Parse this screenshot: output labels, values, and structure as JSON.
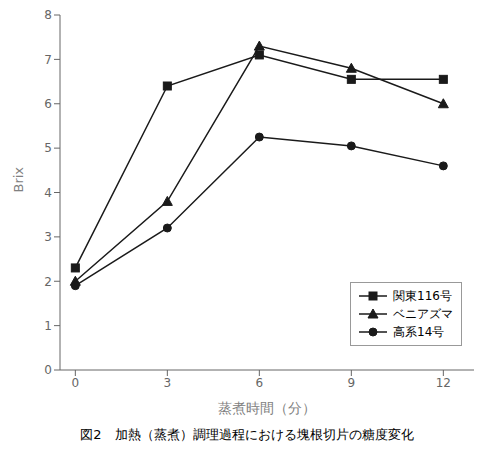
{
  "chart_data": {
    "type": "line",
    "x": [
      0,
      3,
      6,
      9,
      12
    ],
    "series": [
      {
        "name": "関東116号",
        "color": "#1a1a1a",
        "values": [
          2.3,
          6.4,
          7.1,
          6.55,
          6.55
        ],
        "marker": "square",
        "line_style": "solid"
      },
      {
        "name": "ベニアズマ",
        "color": "#1a1a1a",
        "values": [
          2.0,
          3.8,
          7.3,
          6.8,
          6.0
        ],
        "marker": "triangle",
        "line_style": "solid"
      },
      {
        "name": "高系14号",
        "color": "#1a1a1a",
        "values": [
          1.9,
          3.2,
          5.25,
          5.05,
          4.6
        ],
        "marker": "circle",
        "line_style": "solid"
      }
    ],
    "x_label": "蒸煮時間（分）",
    "y_label": "Brix",
    "xlim": [
      -0.5,
      13
    ],
    "ylim": [
      0,
      8
    ],
    "xticks": [
      0,
      3,
      6,
      9,
      12
    ],
    "yticks": [
      0,
      1,
      2,
      3,
      4,
      5,
      6,
      7,
      8
    ],
    "caption": "図2　加熱（蒸煮）調理過程における塊根切片の糖度変化",
    "grid": false,
    "legend": "lower right"
  }
}
